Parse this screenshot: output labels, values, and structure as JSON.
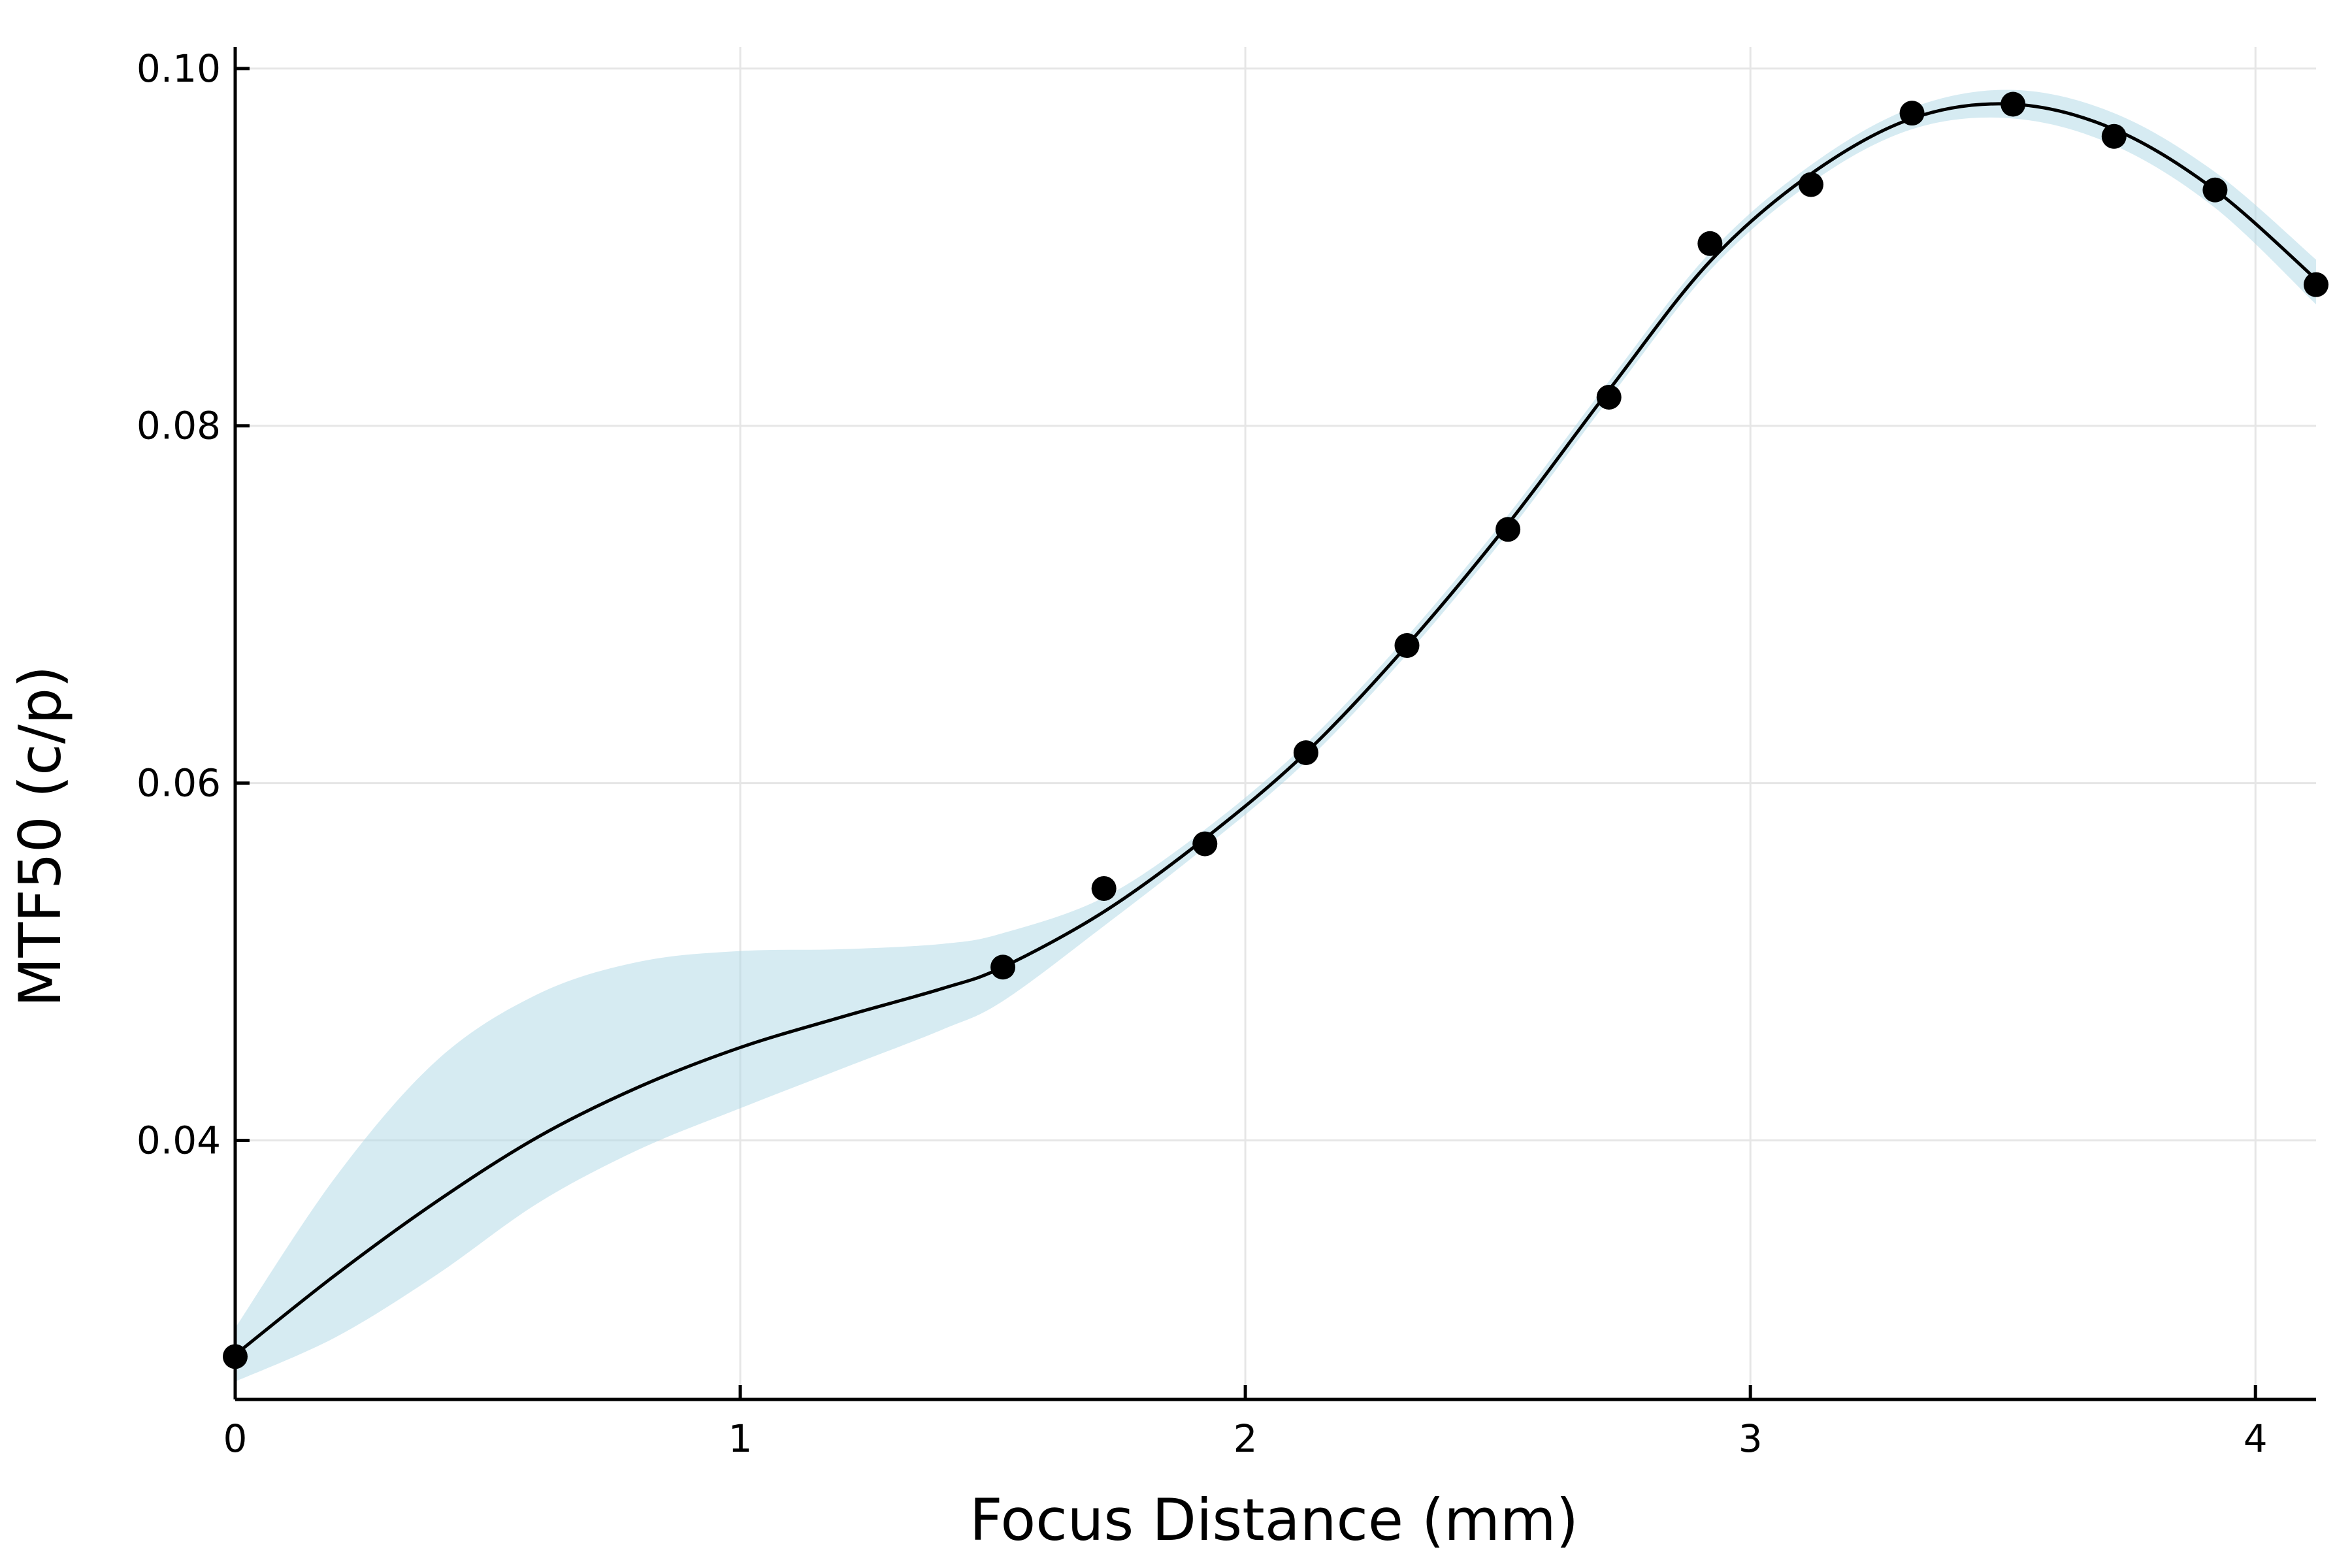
{
  "chart_data": {
    "type": "line",
    "xlabel": "Focus Distance (mm)",
    "ylabel": "MTF50 (c/p)",
    "xlim": [
      0,
      4.12
    ],
    "ylim": [
      0.0255,
      0.1012
    ],
    "grid": true,
    "x_ticks": [
      {
        "value": 0,
        "label": "0"
      },
      {
        "value": 1,
        "label": "1"
      },
      {
        "value": 2,
        "label": "2"
      },
      {
        "value": 3,
        "label": "3"
      },
      {
        "value": 4,
        "label": "4"
      }
    ],
    "y_ticks": [
      {
        "value": 0.04,
        "label": "0.04"
      },
      {
        "value": 0.06,
        "label": "0.06"
      },
      {
        "value": 0.08,
        "label": "0.08"
      },
      {
        "value": 0.1,
        "label": "0.10"
      }
    ],
    "colors": {
      "band": "#add8e6",
      "line": "#000000",
      "points": "#000000"
    },
    "series": [
      {
        "kind": "scatter",
        "x": [
          0,
          1.52,
          1.72,
          1.92,
          2.12,
          2.32,
          2.52,
          2.72,
          2.92,
          3.12,
          3.32,
          3.52,
          3.72,
          3.92,
          4.12
        ],
        "y": [
          0.0279,
          0.0497,
          0.0541,
          0.0566,
          0.0617,
          0.0677,
          0.0742,
          0.0816,
          0.0902,
          0.0935,
          0.0975,
          0.098,
          0.0962,
          0.0932,
          0.0879
        ]
      },
      {
        "kind": "line",
        "x": [
          0,
          0.2,
          0.4,
          0.6,
          0.8,
          1.0,
          1.2,
          1.4,
          1.52,
          1.72,
          1.92,
          2.12,
          2.32,
          2.52,
          2.72,
          2.92,
          3.12,
          3.32,
          3.52,
          3.72,
          3.92,
          4.12
        ],
        "y": [
          0.028,
          0.0325,
          0.0366,
          0.0402,
          0.043,
          0.0452,
          0.0469,
          0.0485,
          0.0497,
          0.0528,
          0.0569,
          0.0617,
          0.0677,
          0.0745,
          0.082,
          0.0892,
          0.0941,
          0.0972,
          0.098,
          0.0966,
          0.0932,
          0.0882
        ]
      },
      {
        "kind": "band",
        "x": [
          0,
          0.2,
          0.4,
          0.6,
          0.8,
          1.0,
          1.2,
          1.4,
          1.52,
          1.72,
          1.92,
          2.12,
          2.32,
          2.52,
          2.72,
          2.92,
          3.12,
          3.32,
          3.52,
          3.72,
          3.92,
          4.12
        ],
        "upper": [
          0.0295,
          0.038,
          0.0445,
          0.0482,
          0.05,
          0.0506,
          0.0507,
          0.051,
          0.0516,
          0.0536,
          0.0574,
          0.0622,
          0.0682,
          0.075,
          0.0825,
          0.0897,
          0.0946,
          0.0978,
          0.0988,
          0.0975,
          0.0942,
          0.0893
        ],
        "lower": [
          0.0265,
          0.029,
          0.0325,
          0.0365,
          0.0395,
          0.0418,
          0.044,
          0.0462,
          0.0478,
          0.052,
          0.0564,
          0.0612,
          0.0672,
          0.074,
          0.0815,
          0.0887,
          0.0936,
          0.0966,
          0.0972,
          0.0957,
          0.0922,
          0.0868
        ]
      }
    ]
  }
}
